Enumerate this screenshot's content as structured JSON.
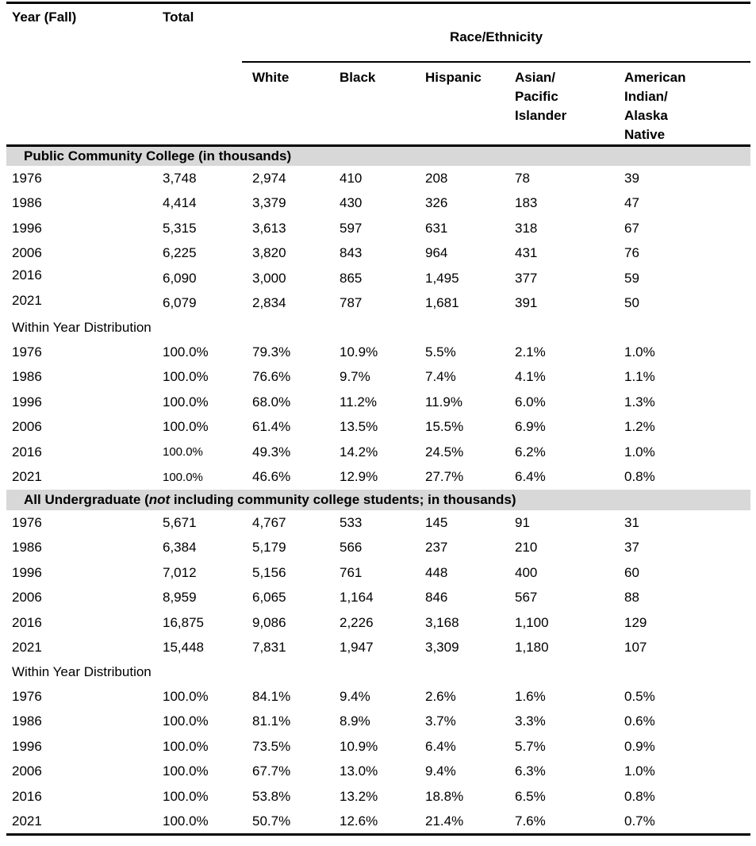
{
  "header": {
    "year_col": "Year (Fall)",
    "total_col": "Total",
    "race_group": "Race/Ethnicity",
    "race_cols": [
      "White",
      "Black",
      "Hispanic",
      "Asian/\nPacific\nIslander",
      "American\nIndian/\nAlaska\nNative"
    ]
  },
  "colors": {
    "section_bar_bg": "#d8d8d8",
    "text": "#000000",
    "background": "#ffffff"
  },
  "sections": [
    {
      "title": {
        "prefix": "Public Community College (in thousands)",
        "italic": "",
        "suffix": ""
      },
      "count_rows": [
        {
          "year": "1976",
          "values": [
            "3,748",
            "2,974",
            "410",
            "208",
            "78",
            "39"
          ]
        },
        {
          "year": "1986",
          "values": [
            "4,414",
            "3,379",
            "430",
            "326",
            "183",
            "47"
          ]
        },
        {
          "year": "1996",
          "values": [
            "5,315",
            "3,613",
            "597",
            "631",
            "318",
            "67"
          ]
        },
        {
          "year": "2006",
          "values": [
            "6,225",
            "3,820",
            "843",
            "964",
            "431",
            "76"
          ]
        },
        {
          "year": "2016",
          "values": [
            "6,090",
            "3,000",
            "865",
            "1,495",
            "377",
            "59"
          ],
          "year_raised": true
        },
        {
          "year": "2021",
          "values": [
            "6,079",
            "2,834",
            "787",
            "1,681",
            "391",
            "50"
          ],
          "year_raised": true
        }
      ],
      "distribution_label": "Within Year Distribution",
      "distribution_rows": [
        {
          "year": "1976",
          "values": [
            "100.0%",
            "79.3%",
            "10.9%",
            "5.5%",
            "2.1%",
            "1.0%"
          ]
        },
        {
          "year": "1986",
          "values": [
            "100.0%",
            "76.6%",
            "9.7%",
            "7.4%",
            "4.1%",
            "1.1%"
          ]
        },
        {
          "year": "1996",
          "values": [
            "100.0%",
            "68.0%",
            "11.2%",
            "11.9%",
            "6.0%",
            "1.3%"
          ]
        },
        {
          "year": "2006",
          "values": [
            "100.0%",
            "61.4%",
            "13.5%",
            "15.5%",
            "6.9%",
            "1.2%"
          ]
        },
        {
          "year": "2016",
          "values": [
            "100.0%",
            "49.3%",
            "14.2%",
            "24.5%",
            "6.2%",
            "1.0%"
          ],
          "total_small": true
        },
        {
          "year": "2021",
          "values": [
            "100.0%",
            "46.6%",
            "12.9%",
            "27.7%",
            "6.4%",
            "0.8%"
          ],
          "total_small": true
        }
      ]
    },
    {
      "title": {
        "prefix": "All Undergraduate (",
        "italic": "not",
        "suffix": " including community college students; in thousands)"
      },
      "count_rows": [
        {
          "year": "1976",
          "values": [
            "5,671",
            "4,767",
            "533",
            "145",
            "91",
            "31"
          ]
        },
        {
          "year": "1986",
          "values": [
            "6,384",
            "5,179",
            "566",
            "237",
            "210",
            "37"
          ]
        },
        {
          "year": "1996",
          "values": [
            "7,012",
            "5,156",
            "761",
            "448",
            "400",
            "60"
          ]
        },
        {
          "year": "2006",
          "values": [
            "8,959",
            "6,065",
            "1,164",
            "846",
            "567",
            "88"
          ]
        },
        {
          "year": "2016",
          "values": [
            "16,875",
            "9,086",
            "2,226",
            "3,168",
            "1,100",
            "129"
          ]
        },
        {
          "year": "2021",
          "values": [
            "15,448",
            "7,831",
            "1,947",
            "3,309",
            "1,180",
            "107"
          ]
        }
      ],
      "distribution_label": "Within Year Distribution",
      "distribution_rows": [
        {
          "year": "1976",
          "values": [
            "100.0%",
            "84.1%",
            "9.4%",
            "2.6%",
            "1.6%",
            "0.5%"
          ]
        },
        {
          "year": "1986",
          "values": [
            "100.0%",
            "81.1%",
            "8.9%",
            "3.7%",
            "3.3%",
            "0.6%"
          ]
        },
        {
          "year": "1996",
          "values": [
            "100.0%",
            "73.5%",
            "10.9%",
            "6.4%",
            "5.7%",
            "0.9%"
          ]
        },
        {
          "year": "2006",
          "values": [
            "100.0%",
            "67.7%",
            "13.0%",
            "9.4%",
            "6.3%",
            "1.0%"
          ]
        },
        {
          "year": "2016",
          "values": [
            "100.0%",
            "53.8%",
            "13.2%",
            "18.8%",
            "6.5%",
            "0.8%"
          ]
        },
        {
          "year": "2021",
          "values": [
            "100.0%",
            "50.7%",
            "12.6%",
            "21.4%",
            "7.6%",
            "0.7%"
          ]
        }
      ]
    }
  ]
}
